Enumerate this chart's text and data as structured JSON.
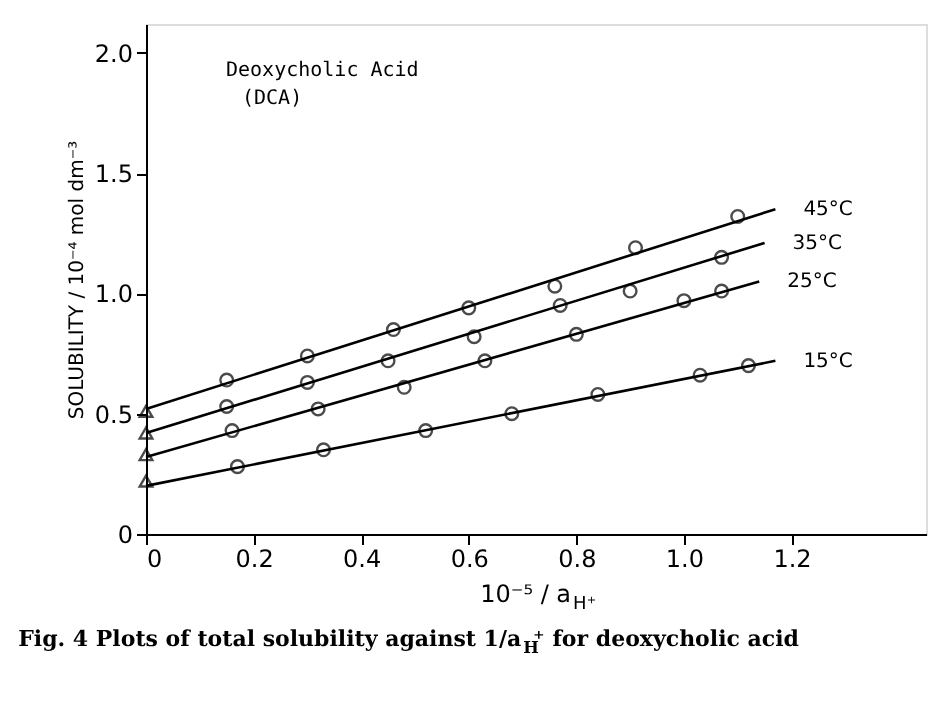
{
  "chart_data": {
    "type": "scatter",
    "xlabel": "10⁻⁵ / a$_{H⁺}$",
    "ylabel": "SOLUBILITY / 10⁻⁴ mol dm⁻³",
    "xlim": [
      0,
      1.45
    ],
    "ylim": [
      0,
      2.12
    ],
    "xticks": [
      0,
      {
        "value": 0.2,
        "label": "0.2"
      },
      {
        "value": 0.4,
        "label": "0.4"
      },
      {
        "value": 0.6,
        "label": "0.6"
      },
      {
        "value": 0.8,
        "label": "0.8"
      },
      {
        "value": 1,
        "label": "1.0"
      },
      {
        "value": 1.2,
        "label": "1.2"
      }
    ],
    "yticks": [
      0,
      {
        "value": 0.5,
        "label": "0.5"
      },
      {
        "value": 1,
        "label": "1.0"
      },
      {
        "value": 1.5,
        "label": "1.5"
      },
      {
        "value": 2,
        "label": "2.0"
      }
    ],
    "grid": false,
    "annotations": [
      {
        "text": "Deoxycholic Acid"
      },
      {
        "text": "(DCA)"
      },
      {
        "text": "Fig. 4  Plots of total solubility against 1/a$_{H}$⁺ for deoxycholic acid"
      }
    ],
    "series": [
      {
        "type": "line",
        "name": "45°C",
        "color": "#000000",
        "marker": "none",
        "line_style": "solid",
        "x": [
          0,
          1.17
        ],
        "values": [
          0.52,
          1.35
        ]
      },
      {
        "type": "line",
        "name": "35°C",
        "color": "#000000",
        "marker": "none",
        "line_style": "solid",
        "x": [
          0,
          1.15
        ],
        "values": [
          0.42,
          1.21
        ]
      },
      {
        "type": "line",
        "name": "25°C",
        "color": "#000000",
        "marker": "none",
        "line_style": "solid",
        "x": [
          0,
          1.14
        ],
        "values": [
          0.32,
          1.05
        ]
      },
      {
        "type": "line",
        "name": "15°C",
        "color": "#000000",
        "marker": "none",
        "line_style": "solid",
        "x": [
          0,
          1.17
        ],
        "values": [
          0.2,
          0.72
        ]
      },
      {
        "type": "scatter",
        "color": "#000000",
        "marker": "circle",
        "x": [
          0.15,
          0.3,
          0.46,
          0.6,
          0.76,
          0.91,
          1.1
        ],
        "values": [
          0.64,
          0.74,
          0.85,
          0.94,
          1.03,
          1.19,
          1.32
        ]
      },
      {
        "type": "scatter",
        "color": "#000000",
        "marker": "circle",
        "x": [
          0.15,
          0.3,
          0.45,
          0.61,
          0.77,
          0.9,
          1.07
        ],
        "values": [
          0.53,
          0.63,
          0.72,
          0.82,
          0.95,
          1.01,
          1.15
        ]
      },
      {
        "type": "scatter",
        "color": "#000000",
        "marker": "circle",
        "x": [
          0.16,
          0.32,
          0.48,
          0.63,
          0.8,
          1.0,
          1.07
        ],
        "values": [
          0.43,
          0.52,
          0.61,
          0.72,
          0.83,
          0.97,
          1.01
        ]
      },
      {
        "type": "scatter",
        "color": "#000000",
        "marker": "circle",
        "x": [
          0.17,
          0.33,
          0.52,
          0.68,
          0.84,
          1.03,
          1.12
        ],
        "values": [
          0.28,
          0.35,
          0.43,
          0.5,
          0.58,
          0.66,
          0.7
        ]
      },
      {
        "type": "scatter",
        "color": "#000000",
        "marker": "triangle",
        "x": [
          0,
          0,
          0,
          0
        ],
        "values": [
          0.51,
          0.42,
          0.33,
          0.22
        ]
      }
    ]
  }
}
